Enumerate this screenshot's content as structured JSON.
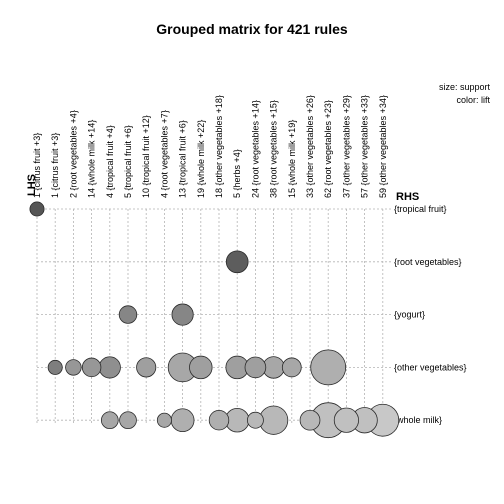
{
  "chart_data": {
    "type": "scatter",
    "title": "Grouped matrix for 421 rules",
    "xlabel": "LHS",
    "ylabel": "RHS",
    "legend": {
      "size": "size: support",
      "color": "color: lift"
    },
    "lhs_labels": [
      "1 {citrus fruit +3}",
      "1 {citrus fruit +3}",
      "2 {root vegetables +4}",
      "14 {whole milk +14}",
      "4 {tropical fruit +4}",
      "5 {tropical fruit +6}",
      "10 {tropical fruit +12}",
      "4 {root vegetables +7}",
      "13 {tropical fruit +6}",
      "19 {whole milk +22}",
      "18 {other vegetables +18}",
      "5 {herbs +4}",
      "24 {root vegetables +14}",
      "38 {root vegetables +15}",
      "15 {whole milk +19}",
      "33 {other vegetables +26}",
      "62 {root vegetables +23}",
      "37 {other vegetables +29}",
      "57 {other vegetables +33}",
      "59 {other vegetables +34}"
    ],
    "rhs_labels": [
      "{tropical fruit}",
      "{root vegetables}",
      "{yogurt}",
      "{other vegetables}",
      "{whole milk}"
    ],
    "points": [
      {
        "lhs": 0,
        "rhs": 0,
        "support": 0.08,
        "lift": 0.85
      },
      {
        "lhs": 11,
        "rhs": 1,
        "support": 0.3,
        "lift": 0.8
      },
      {
        "lhs": 5,
        "rhs": 2,
        "support": 0.16,
        "lift": 0.55
      },
      {
        "lhs": 8,
        "rhs": 2,
        "support": 0.28,
        "lift": 0.55
      },
      {
        "lhs": 1,
        "rhs": 3,
        "support": 0.08,
        "lift": 0.6
      },
      {
        "lhs": 2,
        "rhs": 3,
        "support": 0.11,
        "lift": 0.45
      },
      {
        "lhs": 3,
        "rhs": 3,
        "support": 0.19,
        "lift": 0.45
      },
      {
        "lhs": 4,
        "rhs": 3,
        "support": 0.28,
        "lift": 0.5
      },
      {
        "lhs": 6,
        "rhs": 3,
        "support": 0.21,
        "lift": 0.4
      },
      {
        "lhs": 8,
        "rhs": 3,
        "support": 0.62,
        "lift": 0.35
      },
      {
        "lhs": 9,
        "rhs": 3,
        "support": 0.33,
        "lift": 0.4
      },
      {
        "lhs": 11,
        "rhs": 3,
        "support": 0.33,
        "lift": 0.4
      },
      {
        "lhs": 12,
        "rhs": 3,
        "support": 0.26,
        "lift": 0.4
      },
      {
        "lhs": 13,
        "rhs": 3,
        "support": 0.29,
        "lift": 0.35
      },
      {
        "lhs": 14,
        "rhs": 3,
        "support": 0.2,
        "lift": 0.35
      },
      {
        "lhs": 16,
        "rhs": 3,
        "support": 1.0,
        "lift": 0.3
      },
      {
        "lhs": 4,
        "rhs": 4,
        "support": 0.14,
        "lift": 0.35
      },
      {
        "lhs": 5,
        "rhs": 4,
        "support": 0.14,
        "lift": 0.35
      },
      {
        "lhs": 7,
        "rhs": 4,
        "support": 0.08,
        "lift": 0.35
      },
      {
        "lhs": 8,
        "rhs": 4,
        "support": 0.34,
        "lift": 0.3
      },
      {
        "lhs": 10,
        "rhs": 4,
        "support": 0.22,
        "lift": 0.3
      },
      {
        "lhs": 11,
        "rhs": 4,
        "support": 0.37,
        "lift": 0.25
      },
      {
        "lhs": 12,
        "rhs": 4,
        "support": 0.12,
        "lift": 0.25
      },
      {
        "lhs": 13,
        "rhs": 4,
        "support": 0.6,
        "lift": 0.25
      },
      {
        "lhs": 15,
        "rhs": 4,
        "support": 0.23,
        "lift": 0.25
      },
      {
        "lhs": 16,
        "rhs": 4,
        "support": 1.0,
        "lift": 0.2
      },
      {
        "lhs": 17,
        "rhs": 4,
        "support": 0.4,
        "lift": 0.2
      },
      {
        "lhs": 18,
        "rhs": 4,
        "support": 0.45,
        "lift": 0.2
      },
      {
        "lhs": 19,
        "rhs": 4,
        "support": 0.8,
        "lift": 0.15
      }
    ],
    "grid": true,
    "colors": {
      "high_lift": "#555555",
      "low_lift": "#c8c8c8",
      "grid": "#b4b4b4"
    }
  }
}
